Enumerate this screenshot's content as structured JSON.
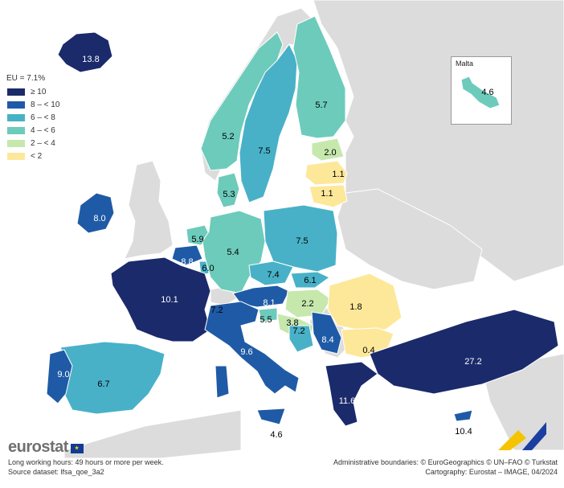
{
  "legend": {
    "title": "EU = 7.1%",
    "classes": [
      {
        "label": "≥ 10",
        "color": "#1b2a6b"
      },
      {
        "label": "8 – < 10",
        "color": "#1f5aa6"
      },
      {
        "label": "6 – < 8",
        "color": "#48b1c8"
      },
      {
        "label": "4 – < 6",
        "color": "#6dcbbb"
      },
      {
        "label": "2 – < 4",
        "color": "#c6e8ad"
      },
      {
        "label": "< 2",
        "color": "#fde89a"
      }
    ],
    "nodata_color": "#dcdcdc"
  },
  "chart_data": {
    "type": "choropleth",
    "eu_value": 7.1,
    "unit": "%",
    "regions": [
      {
        "value": 13.8
      },
      {
        "value": 8.0
      },
      {
        "value": 5.2
      },
      {
        "value": 7.5
      },
      {
        "value": 5.7
      },
      {
        "value": 2.0
      },
      {
        "value": 1.1
      },
      {
        "value": 1.1
      },
      {
        "value": 5.3
      },
      {
        "value": 5.9
      },
      {
        "value": 8.8
      },
      {
        "value": 6.0
      },
      {
        "value": 5.4
      },
      {
        "value": 7.5
      },
      {
        "value": 7.4
      },
      {
        "value": 6.1
      },
      {
        "value": 10.1
      },
      {
        "value": 7.2
      },
      {
        "value": 8.1
      },
      {
        "value": 2.2
      },
      {
        "value": 1.8
      },
      {
        "value": 5.5
      },
      {
        "value": 3.8
      },
      {
        "value": 7.2
      },
      {
        "value": 8.4
      },
      {
        "value": 0.4
      },
      {
        "value": 9.6
      },
      {
        "value": 27.2
      },
      {
        "value": 9.0
      },
      {
        "value": 6.7
      },
      {
        "value": 11.6
      },
      {
        "value": 4.6
      },
      {
        "value": 10.4
      },
      {
        "value": 4.6
      }
    ]
  },
  "inset": {
    "label": "Malta"
  },
  "logo": {
    "text": "eurostat"
  },
  "footer": {
    "line1": "Long working hours: 49 hours or more per week.",
    "line2": "Source dataset: lfsa_qoe_3a2",
    "right1": "Administrative boundaries: © EuroGeographics © UN–FAO © Turkstat",
    "right2": "Cartography: Eurostat – IMAGE, 04/2024"
  }
}
